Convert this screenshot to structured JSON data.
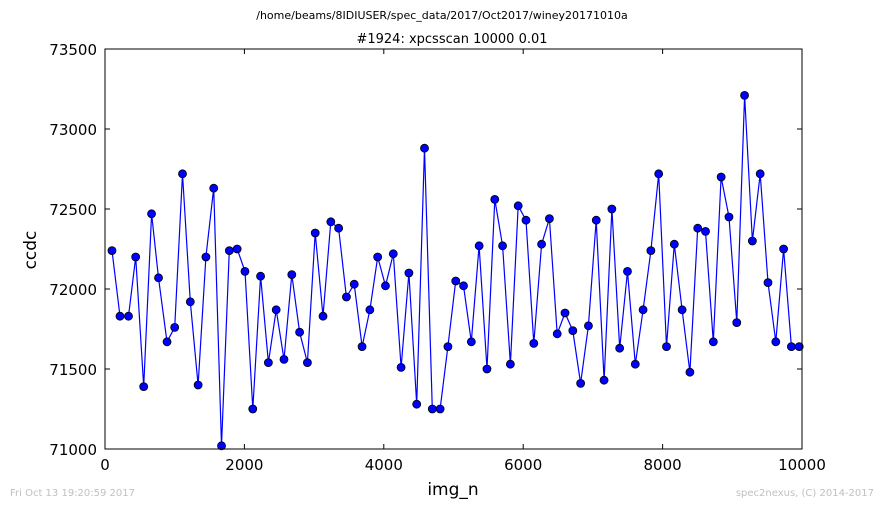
{
  "header": {
    "path": "/home/beams/8IDIUSER/spec_data/2017/Oct2017/winey20171010a"
  },
  "footer": {
    "timestamp": "Fri Oct 13 19:20:59 2017",
    "credit": "spec2nexus, (C) 2014-2017"
  },
  "chart_data": {
    "type": "line",
    "title": "#1924: xpcsscan 10000 0.01",
    "xlabel": "img_n",
    "ylabel": "ccdc",
    "xlim": [
      0,
      10000
    ],
    "ylim": [
      71000,
      73500
    ],
    "xticks": [
      0,
      2000,
      4000,
      6000,
      8000,
      10000
    ],
    "yticks": [
      71000,
      71500,
      72000,
      72500,
      73000,
      73500
    ],
    "grid": false,
    "line_color": "#0000ff",
    "series": [
      {
        "x": [
          100,
          215,
          337,
          440,
          555,
          668,
          768,
          890,
          1000,
          1112,
          1224,
          1336,
          1448,
          1560,
          1672,
          1784,
          1896,
          2008,
          2120,
          2232,
          2344,
          2456,
          2568,
          2680,
          2792,
          2904,
          3016,
          3128,
          3240,
          3352,
          3464,
          3576,
          3688,
          3800,
          3912,
          4024,
          4136,
          4248,
          4360,
          4472,
          4584,
          4696,
          4808,
          4920,
          5032,
          5144,
          5256,
          5368,
          5480,
          5592,
          5704,
          5816,
          5928,
          6040,
          6152,
          6264,
          6376,
          6488,
          6600,
          6712,
          6824,
          6936,
          7048,
          7160,
          7272,
          7384,
          7496,
          7608,
          7720,
          7832,
          7944,
          8056,
          8168,
          8280,
          8392,
          8504,
          8616,
          8728,
          8840,
          8952,
          9064,
          9176,
          9288,
          9400,
          9512,
          9624,
          9736,
          9848,
          9960
        ],
        "y": [
          72240,
          71830,
          71830,
          72200,
          71390,
          72470,
          72070,
          71670,
          71760,
          72720,
          71920,
          71400,
          72200,
          72630,
          71020,
          72240,
          72250,
          72110,
          71250,
          72080,
          71540,
          71870,
          71560,
          72090,
          71730,
          71540,
          72350,
          71830,
          72420,
          72380,
          71950,
          72030,
          71640,
          71870,
          72200,
          72020,
          72220,
          71510,
          72100,
          71280,
          72880,
          71250,
          71250,
          71640,
          72050,
          72020,
          71670,
          72270,
          71500,
          72560,
          72270,
          71530,
          72520,
          72430,
          71660,
          72280,
          72440,
          71720,
          71850,
          71740,
          71410,
          71770,
          72430,
          71430,
          72500,
          71630,
          72110,
          71530,
          71870,
          72240,
          72720,
          71640,
          72280,
          71870,
          71480,
          72380,
          72360,
          71670,
          72700,
          72450,
          71790,
          73210,
          72300,
          72720,
          72040,
          71670,
          72250,
          71640,
          71640
        ]
      }
    ]
  }
}
